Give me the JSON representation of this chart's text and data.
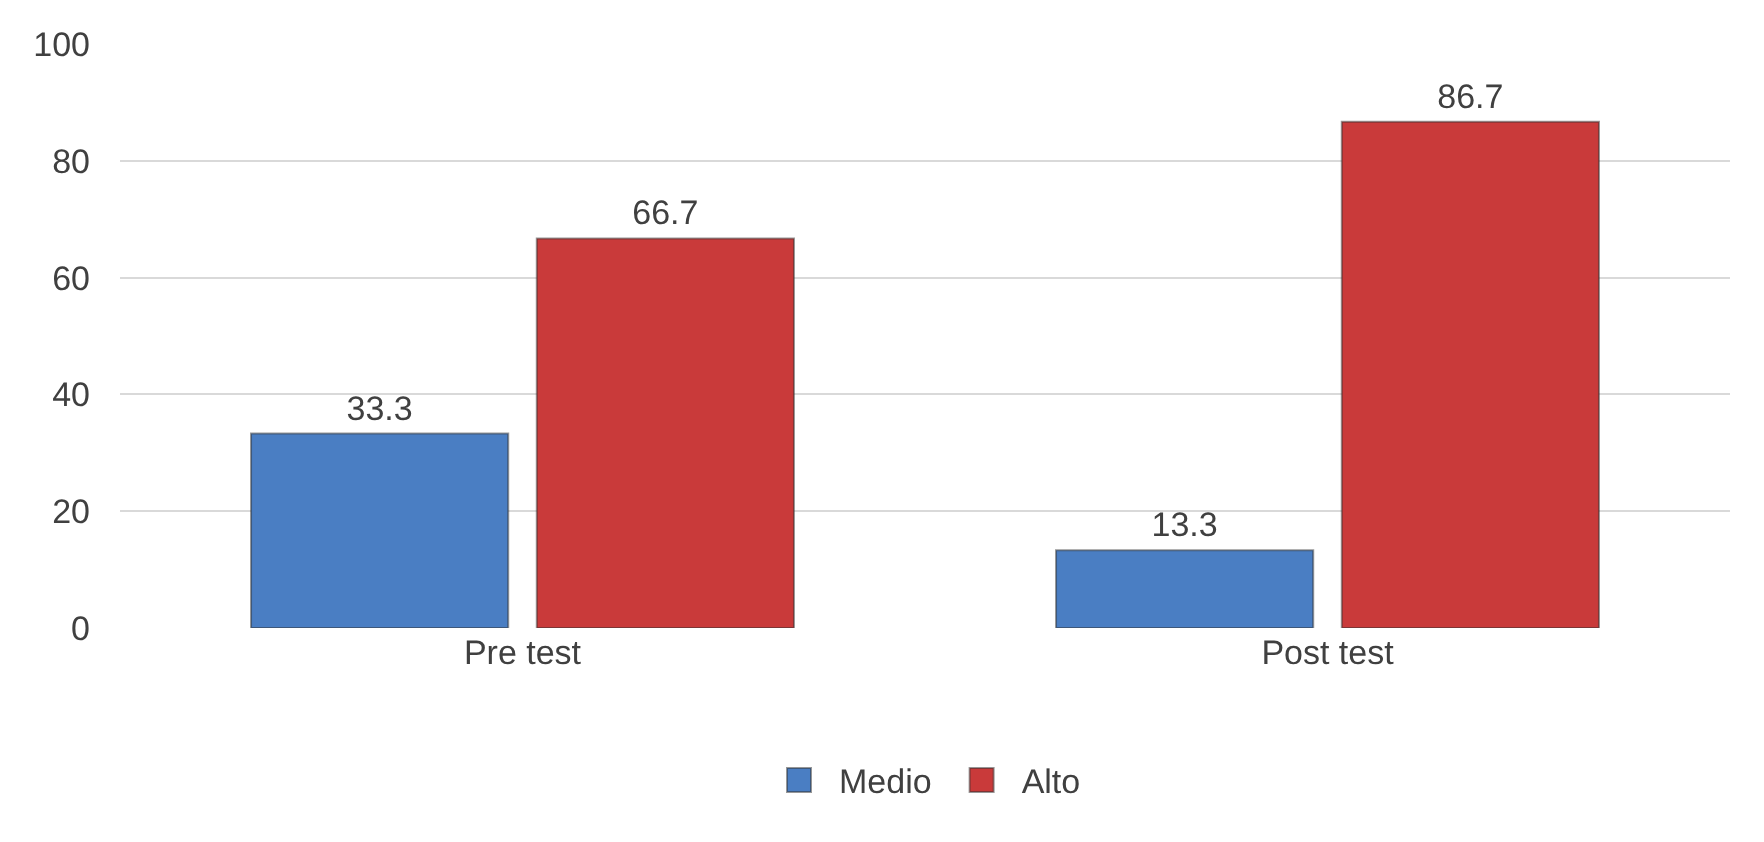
{
  "chart_data": {
    "type": "bar",
    "categories": [
      "Pre test",
      "Post test"
    ],
    "series": [
      {
        "name": "Medio",
        "color": "#4a7ec3",
        "values": [
          33.3,
          13.3
        ]
      },
      {
        "name": "Alto",
        "color": "#c93a3a",
        "values": [
          66.7,
          86.7
        ]
      }
    ],
    "ylim": [
      0,
      100
    ],
    "yticks": [
      0,
      20,
      40,
      60,
      80,
      100
    ],
    "grid": "y",
    "legend": "bottom",
    "data_labels": true
  }
}
